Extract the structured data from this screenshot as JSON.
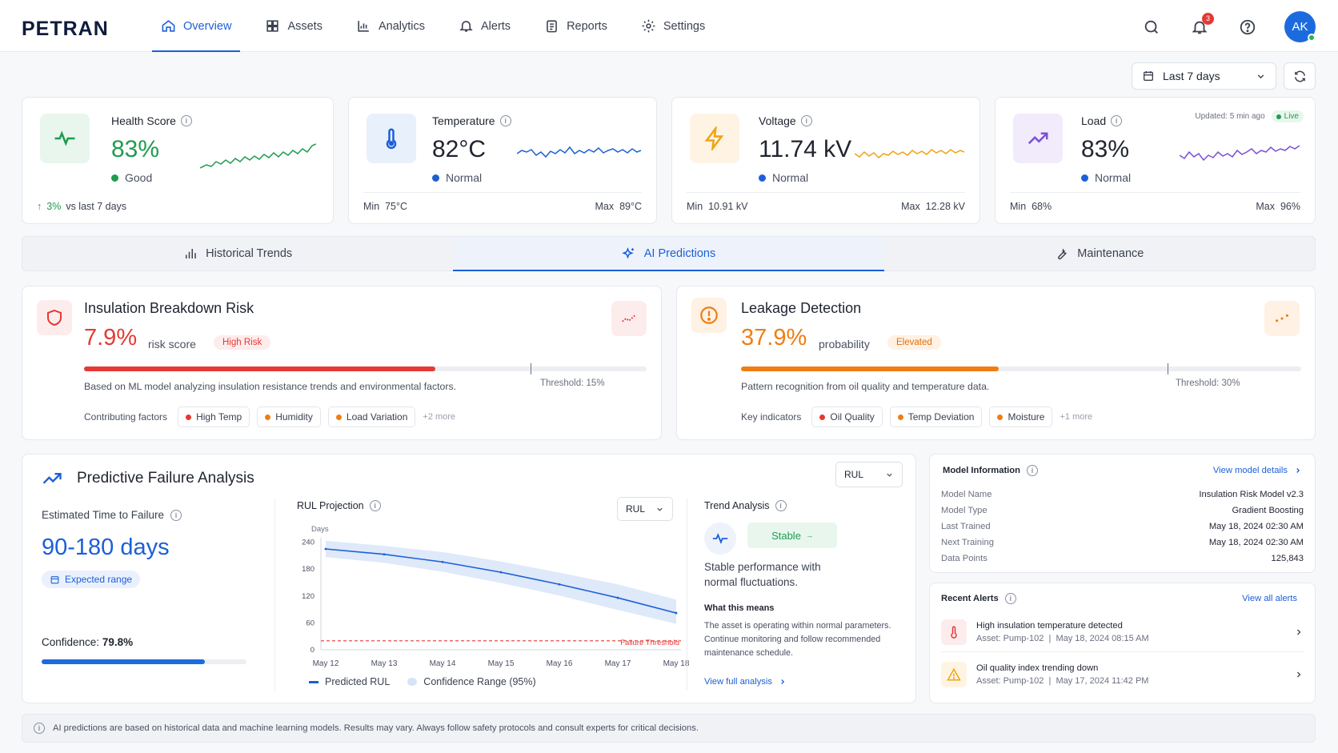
{
  "brand": "PETRAN",
  "nav": {
    "items": [
      {
        "label": "Overview",
        "icon": "home-icon"
      },
      {
        "label": "Assets",
        "icon": "grid-icon"
      },
      {
        "label": "Analytics",
        "icon": "chart-icon"
      },
      {
        "label": "Alerts",
        "icon": "bell-icon"
      },
      {
        "label": "Reports",
        "icon": "clipboard-icon"
      },
      {
        "label": "Settings",
        "icon": "gear-icon"
      }
    ],
    "active": "Overview"
  },
  "topbar": {
    "notifications_count": "3",
    "avatar_initials": "AK"
  },
  "date_range": "Last 7 days",
  "kpis": {
    "health": {
      "label": "Health Score",
      "value": "83%",
      "status": "Good",
      "trend_value": "3%",
      "trend_text": "vs last 7 days"
    },
    "temperature": {
      "label": "Temperature",
      "value": "82°C",
      "status": "Normal",
      "min_label": "Min",
      "min": "75°C",
      "max_label": "Max",
      "max": "89°C"
    },
    "voltage": {
      "label": "Voltage",
      "value": "11.74 kV",
      "status": "Normal",
      "min_label": "Min",
      "min": "10.91 kV",
      "max_label": "Max",
      "max": "12.28 kV"
    },
    "load": {
      "label": "Load",
      "value": "83%",
      "status": "Normal",
      "min_label": "Min",
      "min": "68%",
      "max_label": "Max",
      "max": "96%",
      "updated": "Updated: 5 min ago",
      "live": "Live"
    }
  },
  "tabs": [
    {
      "label": "Historical Trends"
    },
    {
      "label": "AI Predictions"
    },
    {
      "label": "Maintenance"
    }
  ],
  "insulation": {
    "title": "Insulation Breakdown Risk",
    "value": "7.9%",
    "unit": "risk score",
    "badge": "High Risk",
    "progress": 0.625,
    "threshold_label": "Threshold: 15%",
    "description": "Based on ML model analyzing insulation resistance trends and environmental factors.",
    "factors_label": "Contributing factors",
    "factors": [
      "High Temp",
      "Humidity",
      "Load Variation"
    ],
    "more": "+2 more"
  },
  "leakage": {
    "title": "Leakage Detection",
    "value": "37.9%",
    "unit": "probability",
    "badge": "Elevated",
    "progress": 0.46,
    "threshold_label": "Threshold: 30%",
    "description": "Pattern recognition from oil quality and temperature data.",
    "factors_label": "Key indicators",
    "factors": [
      "Oil Quality",
      "Temp Deviation",
      "Moisture"
    ],
    "more": "+1 more"
  },
  "pfa": {
    "title": "Predictive Failure Analysis",
    "select": "RUL",
    "ettf_label": "Estimated Time to Failure",
    "ettf_value": "90-180 days",
    "expected_range": "Expected range",
    "confidence_label": "Confidence:",
    "confidence_value": "79.8%",
    "confidence": 0.798,
    "rul_title": "RUL Projection",
    "rul_select": "RUL",
    "trend_title": "Trend Analysis",
    "trend_status": "Stable",
    "trend_desc": "Stable performance with normal fluctuations.",
    "what_means_title": "What this means",
    "what_means_text": "The asset is operating within normal parameters. Continue monitoring and follow recommended maintenance schedule.",
    "view_full": "View full analysis",
    "legend_predicted": "Predicted RUL",
    "legend_range": "Confidence Range (95%)"
  },
  "chart_data": {
    "type": "line",
    "ylabel": "Days",
    "x": [
      "May 12",
      "May 13",
      "May 14",
      "May 15",
      "May 16",
      "May 17",
      "May 18"
    ],
    "yticks": [
      0,
      60,
      120,
      180,
      240
    ],
    "ylim": [
      0,
      250
    ],
    "series": [
      {
        "name": "Predicted RUL",
        "values": [
          225,
          213,
          196,
          173,
          146,
          116,
          82
        ]
      },
      {
        "name": "Confidence Range (95%)",
        "upper": [
          243,
          232,
          218,
          197,
          172,
          146,
          112
        ],
        "lower": [
          207,
          194,
          174,
          149,
          121,
          89,
          58
        ]
      }
    ],
    "threshold": {
      "label": "Failure Threshold",
      "value": 20
    }
  },
  "model_info": {
    "title": "Model Information",
    "link": "View model details",
    "rows": [
      {
        "k": "Model Name",
        "v": "Insulation Risk Model v2.3"
      },
      {
        "k": "Model Type",
        "v": "Gradient Boosting"
      },
      {
        "k": "Last Trained",
        "v": "May 18, 2024 02:30 AM"
      },
      {
        "k": "Next Training",
        "v": "May 18, 2024 02:30 AM"
      },
      {
        "k": "Data Points",
        "v": "125,843"
      }
    ]
  },
  "recent_alerts": {
    "title": "Recent Alerts",
    "link": "View all alerts",
    "items": [
      {
        "title": "High insulation temperature detected",
        "asset": "Asset: Pump-102",
        "time": "May 18, 2024 08:15 AM"
      },
      {
        "title": "Oil quality index trending down",
        "asset": "Asset: Pump-102",
        "time": "May 17, 2024 11:42 PM"
      }
    ]
  },
  "disclaimer": "AI predictions are based on historical data and machine learning models. Results may vary. Always follow safety protocols and consult experts for critical decisions.",
  "colors": {
    "accent": "#1c5fd8",
    "good": "#1e9c4f",
    "danger": "#e53935",
    "warning": "#f07d12",
    "purple": "#7b4fd6"
  }
}
